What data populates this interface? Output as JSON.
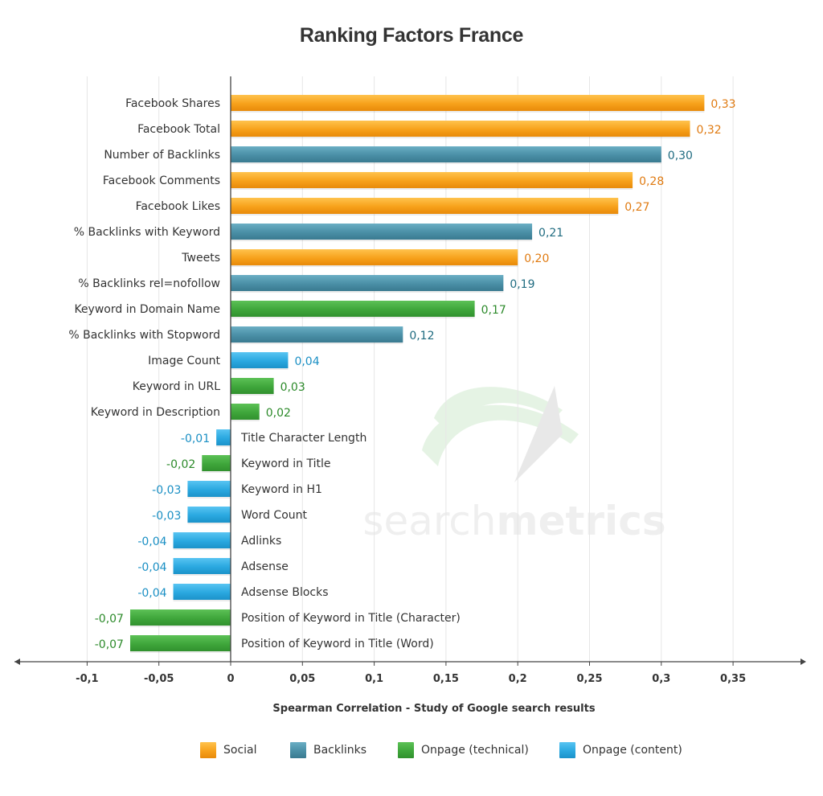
{
  "chart_data": {
    "type": "bar",
    "orientation": "horizontal",
    "title": "Ranking Factors France",
    "xlabel": "Spearman Correlation - Study of Google search results",
    "ylabel": "",
    "xlim": [
      -0.15,
      0.4
    ],
    "x_ticks": [
      {
        "value": -0.1,
        "label": "-0,1"
      },
      {
        "value": -0.05,
        "label": "-0,05"
      },
      {
        "value": 0,
        "label": "0"
      },
      {
        "value": 0.05,
        "label": "0,05"
      },
      {
        "value": 0.1,
        "label": "0,1"
      },
      {
        "value": 0.15,
        "label": "0,15"
      },
      {
        "value": 0.2,
        "label": "0,2"
      },
      {
        "value": 0.25,
        "label": "0,25"
      },
      {
        "value": 0.3,
        "label": "0,3"
      },
      {
        "value": 0.35,
        "label": "0,35"
      }
    ],
    "grid": "vertical",
    "legend_position": "bottom",
    "groups": [
      {
        "name": "Social",
        "color": "#f7a11b"
      },
      {
        "name": "Backlinks",
        "color": "#4a8fa6"
      },
      {
        "name": "Onpage (technical)",
        "color": "#3fa63b"
      },
      {
        "name": "Onpage (content)",
        "color": "#2aa8e0"
      }
    ],
    "label_colors": {
      "Social": "#e07b12",
      "Backlinks": "#1f6b80",
      "Onpage (technical)": "#2c8a2a",
      "Onpage (content)": "#1a8fc4"
    },
    "bars": [
      {
        "category": "Facebook Shares",
        "value": 0.33,
        "label": "0,33",
        "group": "Social"
      },
      {
        "category": "Facebook Total",
        "value": 0.32,
        "label": "0,32",
        "group": "Social"
      },
      {
        "category": "Number of Backlinks",
        "value": 0.3,
        "label": "0,30",
        "group": "Backlinks"
      },
      {
        "category": "Facebook Comments",
        "value": 0.28,
        "label": "0,28",
        "group": "Social"
      },
      {
        "category": "Facebook Likes",
        "value": 0.27,
        "label": "0,27",
        "group": "Social"
      },
      {
        "category": "% Backlinks with Keyword",
        "value": 0.21,
        "label": "0,21",
        "group": "Backlinks"
      },
      {
        "category": "Tweets",
        "value": 0.2,
        "label": "0,20",
        "group": "Social"
      },
      {
        "category": "% Backlinks rel=nofollow",
        "value": 0.19,
        "label": "0,19",
        "group": "Backlinks"
      },
      {
        "category": "Keyword in Domain Name",
        "value": 0.17,
        "label": "0,17",
        "group": "Onpage (technical)"
      },
      {
        "category": "% Backlinks with Stopword",
        "value": 0.12,
        "label": "0,12",
        "group": "Backlinks"
      },
      {
        "category": "Image Count",
        "value": 0.04,
        "label": "0,04",
        "group": "Onpage (content)"
      },
      {
        "category": "Keyword in URL",
        "value": 0.03,
        "label": "0,03",
        "group": "Onpage (technical)"
      },
      {
        "category": "Keyword in Description",
        "value": 0.02,
        "label": "0,02",
        "group": "Onpage (technical)"
      },
      {
        "category": "Title Character Length",
        "value": -0.01,
        "label": "-0,01",
        "group": "Onpage (content)"
      },
      {
        "category": "Keyword in Title",
        "value": -0.02,
        "label": "-0,02",
        "group": "Onpage (technical)"
      },
      {
        "category": "Keyword in H1",
        "value": -0.03,
        "label": "-0,03",
        "group": "Onpage (content)"
      },
      {
        "category": "Word Count",
        "value": -0.03,
        "label": "-0,03",
        "group": "Onpage (content)"
      },
      {
        "category": "Adlinks",
        "value": -0.04,
        "label": "-0,04",
        "group": "Onpage (content)"
      },
      {
        "category": "Adsense",
        "value": -0.04,
        "label": "-0,04",
        "group": "Onpage (content)"
      },
      {
        "category": "Adsense Blocks",
        "value": -0.04,
        "label": "-0,04",
        "group": "Onpage (content)"
      },
      {
        "category": "Position of Keyword in Title (Character)",
        "value": -0.07,
        "label": "-0,07",
        "group": "Onpage (technical)"
      },
      {
        "category": "Position of Keyword in Title (Word)",
        "value": -0.07,
        "label": "-0,07",
        "group": "Onpage (technical)"
      }
    ],
    "watermark": {
      "text_light": "search",
      "text_bold": "metrics"
    }
  }
}
